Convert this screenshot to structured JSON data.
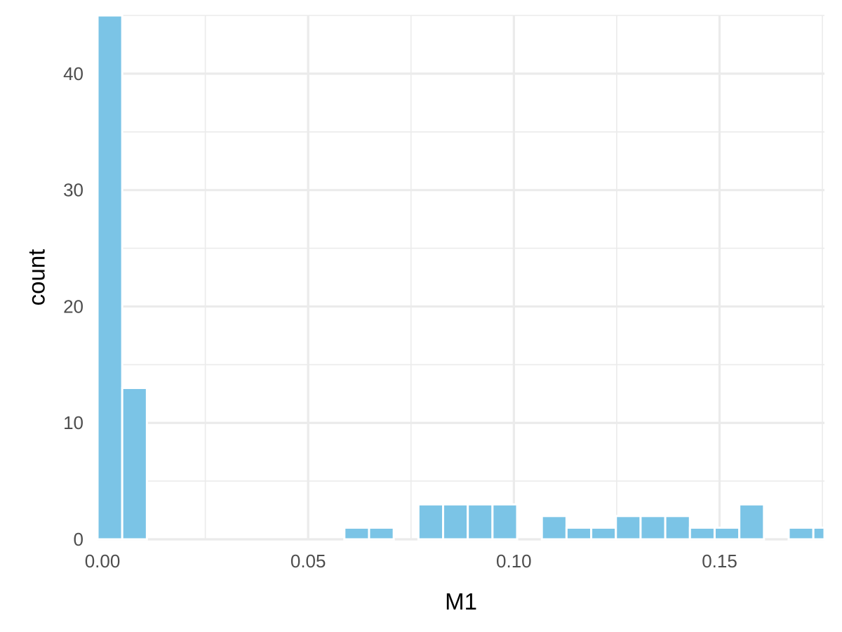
{
  "chart_data": {
    "type": "histogram",
    "xlabel": "M1",
    "ylabel": "count",
    "xlim": [
      -0.0012,
      0.1755
    ],
    "ylim": [
      0,
      45
    ],
    "x_ticks": [
      0.0,
      0.05,
      0.1,
      0.15
    ],
    "x_tick_labels": [
      "0.00",
      "0.05",
      "0.10",
      "0.15"
    ],
    "y_ticks": [
      0,
      10,
      20,
      30,
      40
    ],
    "y_tick_labels": [
      "0",
      "10",
      "20",
      "30",
      "40"
    ],
    "bin_width": 0.006,
    "bins": [
      {
        "x0": -0.0012,
        "x1": 0.0048,
        "count": 45
      },
      {
        "x0": 0.0048,
        "x1": 0.0108,
        "count": 13
      },
      {
        "x0": 0.0108,
        "x1": 0.0168,
        "count": 0
      },
      {
        "x0": 0.0168,
        "x1": 0.0228,
        "count": 0
      },
      {
        "x0": 0.0228,
        "x1": 0.0288,
        "count": 0
      },
      {
        "x0": 0.0288,
        "x1": 0.0348,
        "count": 0
      },
      {
        "x0": 0.0348,
        "x1": 0.0408,
        "count": 0
      },
      {
        "x0": 0.0408,
        "x1": 0.0468,
        "count": 0
      },
      {
        "x0": 0.0468,
        "x1": 0.0528,
        "count": 0
      },
      {
        "x0": 0.0528,
        "x1": 0.0588,
        "count": 0
      },
      {
        "x0": 0.0588,
        "x1": 0.0648,
        "count": 1
      },
      {
        "x0": 0.0648,
        "x1": 0.0708,
        "count": 1
      },
      {
        "x0": 0.0708,
        "x1": 0.0768,
        "count": 0
      },
      {
        "x0": 0.0768,
        "x1": 0.0828,
        "count": 3
      },
      {
        "x0": 0.0828,
        "x1": 0.0888,
        "count": 3
      },
      {
        "x0": 0.0888,
        "x1": 0.0948,
        "count": 3
      },
      {
        "x0": 0.0948,
        "x1": 0.1008,
        "count": 3
      },
      {
        "x0": 0.1008,
        "x1": 0.1068,
        "count": 0
      },
      {
        "x0": 0.1068,
        "x1": 0.1128,
        "count": 2
      },
      {
        "x0": 0.1128,
        "x1": 0.1188,
        "count": 1
      },
      {
        "x0": 0.1188,
        "x1": 0.1248,
        "count": 1
      },
      {
        "x0": 0.1248,
        "x1": 0.1308,
        "count": 2
      },
      {
        "x0": 0.1308,
        "x1": 0.1368,
        "count": 2
      },
      {
        "x0": 0.1368,
        "x1": 0.1428,
        "count": 2
      },
      {
        "x0": 0.1428,
        "x1": 0.1488,
        "count": 1
      },
      {
        "x0": 0.1488,
        "x1": 0.1548,
        "count": 1
      },
      {
        "x0": 0.1548,
        "x1": 0.1608,
        "count": 3
      },
      {
        "x0": 0.1608,
        "x1": 0.1668,
        "count": 0
      },
      {
        "x0": 0.1668,
        "x1": 0.1728,
        "count": 1
      },
      {
        "x0": 0.1728,
        "x1": 0.1788,
        "count": 1
      }
    ],
    "bar_color": "#7BC4E6",
    "bar_outline": "#ffffff",
    "grid": true,
    "grid_color": "#ebebeb",
    "background": "#ffffff",
    "legend": "none"
  }
}
